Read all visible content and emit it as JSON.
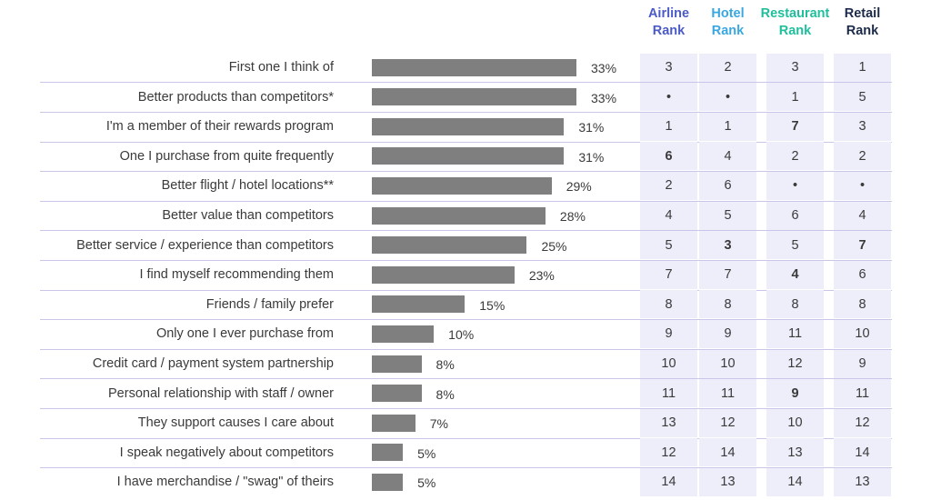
{
  "chart_data": {
    "type": "bar",
    "orientation": "horizontal",
    "xlim": [
      0,
      33
    ],
    "categories": [
      "First one I think of",
      "Better products than competitors*",
      "I'm a member of their rewards program",
      "One I purchase from quite frequently",
      "Better flight / hotel locations**",
      "Better value than competitors",
      "Better service / experience than competitors",
      "I find myself recommending them",
      "Friends / family prefer",
      "Only one I ever purchase from",
      "Credit card / payment system partnership",
      "Personal relationship with staff / owner",
      "They support causes I care about",
      "I speak negatively about competitors",
      "I have merchandise / \"swag\" of theirs"
    ],
    "values": [
      33,
      33,
      31,
      31,
      29,
      28,
      25,
      23,
      15,
      10,
      8,
      8,
      7,
      5,
      5
    ],
    "value_labels": [
      "33%",
      "33%",
      "31%",
      "31%",
      "29%",
      "28%",
      "25%",
      "23%",
      "15%",
      "10%",
      "8%",
      "8%",
      "7%",
      "5%",
      "5%"
    ],
    "bar_color": "#7f7f7f",
    "rank_columns": [
      {
        "header_line1": "Airline",
        "header_line2": "Rank",
        "color": "#4a5bc9",
        "ranks": [
          "3",
          "•",
          "1",
          "6",
          "2",
          "4",
          "5",
          "7",
          "8",
          "9",
          "10",
          "11",
          "13",
          "12",
          "14"
        ],
        "bold": [
          false,
          false,
          false,
          true,
          false,
          false,
          false,
          false,
          false,
          false,
          false,
          false,
          false,
          false,
          false
        ]
      },
      {
        "header_line1": "Hotel",
        "header_line2": "Rank",
        "color": "#3aa7e0",
        "ranks": [
          "2",
          "•",
          "1",
          "4",
          "6",
          "5",
          "3",
          "7",
          "8",
          "9",
          "10",
          "11",
          "12",
          "14",
          "13"
        ],
        "bold": [
          false,
          false,
          false,
          false,
          false,
          false,
          true,
          false,
          false,
          false,
          false,
          false,
          false,
          false,
          false
        ]
      },
      {
        "header_line1": "Restaurant",
        "header_line2": "Rank",
        "color": "#1fbf9c",
        "ranks": [
          "3",
          "1",
          "7",
          "2",
          "•",
          "6",
          "5",
          "4",
          "8",
          "11",
          "12",
          "9",
          "10",
          "13",
          "14"
        ],
        "bold": [
          false,
          false,
          true,
          false,
          false,
          false,
          false,
          true,
          false,
          false,
          false,
          true,
          false,
          false,
          false
        ]
      },
      {
        "header_line1": "Retail",
        "header_line2": "Rank",
        "color": "#1c2a4a",
        "ranks": [
          "1",
          "5",
          "3",
          "2",
          "•",
          "4",
          "7",
          "6",
          "8",
          "10",
          "9",
          "11",
          "12",
          "14",
          "13"
        ],
        "bold": [
          false,
          false,
          false,
          false,
          false,
          false,
          true,
          false,
          false,
          false,
          false,
          false,
          false,
          false,
          false
        ]
      }
    ]
  }
}
